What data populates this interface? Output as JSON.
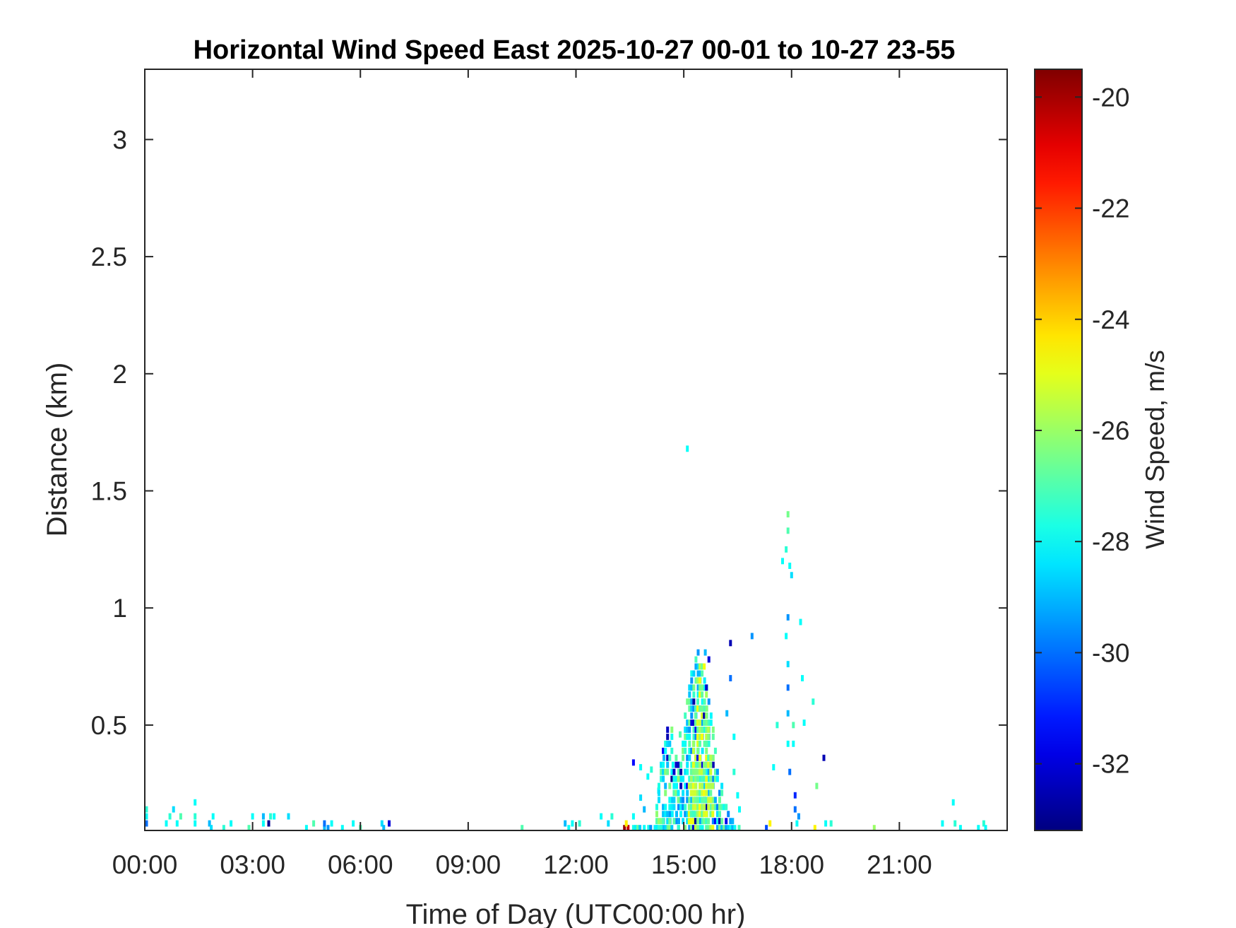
{
  "chart_data": {
    "type": "heatmap",
    "title": "Horizontal Wind Speed East 2025-10-27 00-01 to 10-27 23-55",
    "xlabel": "Time of Day (UTC00:00 hr)",
    "ylabel": "Distance (km)",
    "xlim": [
      0,
      24
    ],
    "ylim": [
      0.05,
      3.3
    ],
    "x_ticks": [
      {
        "value": 0,
        "label": "00:00"
      },
      {
        "value": 3,
        "label": "03:00"
      },
      {
        "value": 6,
        "label": "06:00"
      },
      {
        "value": 9,
        "label": "09:00"
      },
      {
        "value": 12,
        "label": "12:00"
      },
      {
        "value": 15,
        "label": "15:00"
      },
      {
        "value": 18,
        "label": "18:00"
      },
      {
        "value": 21,
        "label": "21:00"
      }
    ],
    "y_ticks": [
      {
        "value": 0.5,
        "label": "0.5"
      },
      {
        "value": 1,
        "label": "1"
      },
      {
        "value": 1.5,
        "label": "1.5"
      },
      {
        "value": 2,
        "label": "2"
      },
      {
        "value": 2.5,
        "label": "2.5"
      },
      {
        "value": 3,
        "label": "3"
      }
    ],
    "colorbar": {
      "label": "Wind Speed, m/s",
      "colormap": "jet",
      "range": [
        -33.2,
        -19.5
      ],
      "ticks": [
        {
          "value": -20,
          "label": "-20"
        },
        {
          "value": -22,
          "label": "-22"
        },
        {
          "value": -24,
          "label": "-24"
        },
        {
          "value": -26,
          "label": "-26"
        },
        {
          "value": -28,
          "label": "-28"
        },
        {
          "value": -30,
          "label": "-30"
        },
        {
          "value": -32,
          "label": "-32"
        }
      ]
    },
    "grid": false,
    "cell_size": {
      "time_hr": 0.083,
      "distance_km": 0.03
    },
    "points": [
      [
        0.05,
        0.08,
        -30
      ],
      [
        0.05,
        0.11,
        -28
      ],
      [
        0.05,
        0.14,
        -27.5
      ],
      [
        0.6,
        0.08,
        -28
      ],
      [
        0.7,
        0.11,
        -27.5
      ],
      [
        0.8,
        0.14,
        -28.5
      ],
      [
        0.9,
        0.08,
        -28
      ],
      [
        1.0,
        0.11,
        -27
      ],
      [
        1.4,
        0.08,
        -28
      ],
      [
        1.4,
        0.11,
        -27.5
      ],
      [
        1.4,
        0.17,
        -28
      ],
      [
        1.8,
        0.08,
        -29
      ],
      [
        1.85,
        0.06,
        -28.5
      ],
      [
        1.9,
        0.11,
        -28
      ],
      [
        2.2,
        0.06,
        -27.5
      ],
      [
        2.4,
        0.08,
        -28
      ],
      [
        2.9,
        0.06,
        -27
      ],
      [
        3.0,
        0.11,
        -28
      ],
      [
        3.3,
        0.08,
        -28
      ],
      [
        3.3,
        0.11,
        -29
      ],
      [
        3.45,
        0.08,
        -33
      ],
      [
        3.5,
        0.11,
        -27.5
      ],
      [
        3.6,
        0.11,
        -28
      ],
      [
        4.0,
        0.11,
        -28.5
      ],
      [
        4.5,
        0.06,
        -28
      ],
      [
        4.7,
        0.08,
        -27
      ],
      [
        5.0,
        0.06,
        -29
      ],
      [
        5.0,
        0.08,
        -30
      ],
      [
        5.1,
        0.06,
        -29.5
      ],
      [
        5.2,
        0.08,
        -28
      ],
      [
        5.5,
        0.06,
        -28
      ],
      [
        5.8,
        0.08,
        -28
      ],
      [
        6.0,
        0.06,
        -27
      ],
      [
        6.6,
        0.08,
        -28.5
      ],
      [
        6.65,
        0.06,
        -29
      ],
      [
        6.8,
        0.08,
        -32
      ],
      [
        10.5,
        0.06,
        -27
      ],
      [
        11.7,
        0.08,
        -29
      ],
      [
        11.8,
        0.06,
        -28
      ],
      [
        11.9,
        0.08,
        -28
      ],
      [
        12.1,
        0.08,
        -27.5
      ],
      [
        12.7,
        0.11,
        -28
      ],
      [
        12.9,
        0.08,
        -28.5
      ],
      [
        13.0,
        0.11,
        -27.5
      ],
      [
        13.35,
        0.06,
        -19.8
      ],
      [
        13.45,
        0.06,
        -20.5
      ],
      [
        13.4,
        0.08,
        -24.5
      ],
      [
        13.6,
        0.11,
        -28
      ],
      [
        13.8,
        0.19,
        -28.5
      ],
      [
        13.9,
        0.14,
        -29
      ],
      [
        13.6,
        0.34,
        -31.5
      ],
      [
        13.8,
        0.32,
        -28
      ],
      [
        14.0,
        0.28,
        -28
      ],
      [
        14.1,
        0.31,
        -27.5
      ],
      [
        14.3,
        0.22,
        -28
      ],
      [
        14.45,
        0.36,
        -29
      ],
      [
        14.55,
        0.42,
        -32.5
      ],
      [
        14.7,
        0.33,
        -28
      ],
      [
        14.9,
        0.46,
        -27
      ],
      [
        15.1,
        1.68,
        -28
      ],
      [
        15.6,
        0.81,
        -29
      ],
      [
        15.7,
        0.78,
        -32
      ],
      [
        16.3,
        0.85,
        -32.5
      ],
      [
        16.3,
        0.7,
        -30
      ],
      [
        16.2,
        0.55,
        -29
      ],
      [
        16.4,
        0.45,
        -28
      ],
      [
        16.4,
        0.3,
        -27.5
      ],
      [
        16.5,
        0.2,
        -28
      ],
      [
        16.55,
        0.14,
        -28
      ],
      [
        16.9,
        0.88,
        -29.5
      ],
      [
        17.3,
        0.06,
        -30.5
      ],
      [
        17.4,
        0.08,
        -24.5
      ],
      [
        17.5,
        0.32,
        -28
      ],
      [
        17.6,
        0.5,
        -27.5
      ],
      [
        17.75,
        1.2,
        -28
      ],
      [
        17.85,
        1.25,
        -27.5
      ],
      [
        17.9,
        1.4,
        -26.5
      ],
      [
        17.9,
        1.33,
        -27
      ],
      [
        17.95,
        1.18,
        -28
      ],
      [
        18.0,
        1.14,
        -28.5
      ],
      [
        17.9,
        0.96,
        -29.5
      ],
      [
        17.85,
        0.88,
        -28
      ],
      [
        17.9,
        0.76,
        -28.5
      ],
      [
        17.9,
        0.66,
        -30
      ],
      [
        17.9,
        0.55,
        -29
      ],
      [
        17.9,
        0.42,
        -28
      ],
      [
        17.95,
        0.3,
        -30
      ],
      [
        18.05,
        0.5,
        -27
      ],
      [
        18.05,
        0.42,
        -28
      ],
      [
        18.1,
        0.2,
        -31
      ],
      [
        18.1,
        0.14,
        -30
      ],
      [
        18.15,
        0.08,
        -28
      ],
      [
        18.2,
        0.11,
        -29.5
      ],
      [
        18.25,
        0.94,
        -28
      ],
      [
        18.3,
        0.7,
        -28
      ],
      [
        18.35,
        0.51,
        -28
      ],
      [
        18.6,
        0.6,
        -27.5
      ],
      [
        18.65,
        0.06,
        -24.5
      ],
      [
        18.7,
        0.24,
        -26.5
      ],
      [
        18.9,
        0.36,
        -32.5
      ],
      [
        18.95,
        0.08,
        -28
      ],
      [
        19.1,
        0.08,
        -27.5
      ],
      [
        20.3,
        0.06,
        -26
      ],
      [
        22.2,
        0.08,
        -28
      ],
      [
        22.5,
        0.17,
        -28
      ],
      [
        22.55,
        0.08,
        -27.5
      ],
      [
        22.7,
        0.06,
        -28
      ],
      [
        23.2,
        0.06,
        -28
      ],
      [
        23.35,
        0.08,
        -27.5
      ],
      [
        23.4,
        0.06,
        -28
      ]
    ],
    "clusters": [
      {
        "t0": 13.6,
        "t1": 16.6,
        "peak_t": 15.4,
        "peak_h": 0.82,
        "width": 0.55,
        "base": [
          -28,
          1.7
        ],
        "density": 0.62,
        "seed": 7
      },
      {
        "t0": 15.15,
        "t1": 15.85,
        "peak_t": 15.5,
        "peak_h": 0.8,
        "width": 0.3,
        "base": [
          -26,
          1.3
        ],
        "density": 0.7,
        "seed": 13
      },
      {
        "t0": 14.25,
        "t1": 14.9,
        "peak_t": 14.6,
        "peak_h": 0.5,
        "width": 0.35,
        "base": [
          -27.5,
          1.5
        ],
        "density": 0.55,
        "seed": 21
      }
    ]
  }
}
